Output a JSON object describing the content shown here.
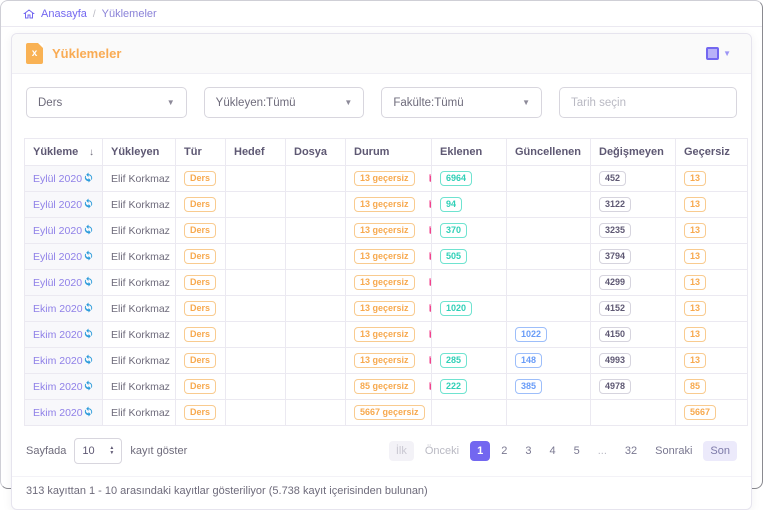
{
  "colors": {
    "accent": "#7367f0",
    "warning": "#f7a94e",
    "success": "#2fd0b7",
    "info_blue": "#699cf8",
    "danger_pink": "#f2418c",
    "refresh_blue": "#2d9cdb"
  },
  "breadcrumb": {
    "separator": "/",
    "items": [
      {
        "label": "Anasayfa"
      },
      {
        "label": "Yüklemeler"
      }
    ]
  },
  "card": {
    "title": "Yüklemeler",
    "filters": {
      "type_select": "Ders",
      "uploader_select": "Yükleyen:Tümü",
      "faculty_select": "Fakülte:Tümü",
      "date_placeholder": "Tarih seçin"
    },
    "table": {
      "columns": [
        "Yükleme",
        "Yükleyen",
        "Tür",
        "Hedef",
        "Dosya",
        "Durum",
        "Eklenen",
        "Güncellenen",
        "Değişmeyen",
        "Geçersiz"
      ],
      "rows": [
        {
          "date": "Eylül 2020",
          "uploader": "Elif Korkmaz",
          "type": "Ders",
          "target": "",
          "file": "",
          "status": "13 geçersiz",
          "added": "6964",
          "updated": "",
          "unchanged": "452",
          "invalid": "13"
        },
        {
          "date": "Eylül 2020",
          "uploader": "Elif Korkmaz",
          "type": "Ders",
          "target": "",
          "file": "",
          "status": "13 geçersiz",
          "added": "94",
          "updated": "",
          "unchanged": "3122",
          "invalid": "13"
        },
        {
          "date": "Eylül 2020",
          "uploader": "Elif Korkmaz",
          "type": "Ders",
          "target": "",
          "file": "",
          "status": "13 geçersiz",
          "added": "370",
          "updated": "",
          "unchanged": "3235",
          "invalid": "13"
        },
        {
          "date": "Eylül 2020",
          "uploader": "Elif Korkmaz",
          "type": "Ders",
          "target": "",
          "file": "",
          "status": "13 geçersiz",
          "added": "505",
          "updated": "",
          "unchanged": "3794",
          "invalid": "13"
        },
        {
          "date": "Eylül 2020",
          "uploader": "Elif Korkmaz",
          "type": "Ders",
          "target": "",
          "file": "",
          "status": "13 geçersiz",
          "added": "",
          "updated": "",
          "unchanged": "4299",
          "invalid": "13"
        },
        {
          "date": "Ekim 2020",
          "uploader": "Elif Korkmaz",
          "type": "Ders",
          "target": "",
          "file": "",
          "status": "13 geçersiz",
          "added": "1020",
          "updated": "",
          "unchanged": "4152",
          "invalid": "13"
        },
        {
          "date": "Ekim 2020",
          "uploader": "Elif Korkmaz",
          "type": "Ders",
          "target": "",
          "file": "",
          "status": "13 geçersiz",
          "added": "",
          "updated": "1022",
          "unchanged": "4150",
          "invalid": "13"
        },
        {
          "date": "Ekim 2020",
          "uploader": "Elif Korkmaz",
          "type": "Ders",
          "target": "",
          "file": "",
          "status": "13 geçersiz",
          "added": "285",
          "updated": "148",
          "unchanged": "4993",
          "invalid": "13"
        },
        {
          "date": "Ekim 2020",
          "uploader": "Elif Korkmaz",
          "type": "Ders",
          "target": "",
          "file": "",
          "status": "85 geçersiz",
          "added": "222",
          "updated": "385",
          "unchanged": "4978",
          "invalid": "85"
        },
        {
          "date": "Ekim 2020",
          "uploader": "Elif Korkmaz",
          "type": "Ders",
          "target": "",
          "file": "",
          "status": "5667 geçersiz",
          "added": "",
          "updated": "",
          "unchanged": "",
          "invalid": "5667"
        }
      ]
    },
    "page_size": {
      "prefix": "Sayfada",
      "value": "10",
      "suffix": "kayıt göster"
    },
    "pagination": {
      "first": "İlk",
      "prev": "Önceki",
      "pages": [
        "1",
        "2",
        "3",
        "4",
        "5",
        "...",
        "32"
      ],
      "active_page": "1",
      "next": "Sonraki",
      "last": "Son"
    },
    "info": "313 kayıttan 1 - 10 arasındaki kayıtlar gösteriliyor (5.738 kayıt içerisinden bulunan)"
  }
}
